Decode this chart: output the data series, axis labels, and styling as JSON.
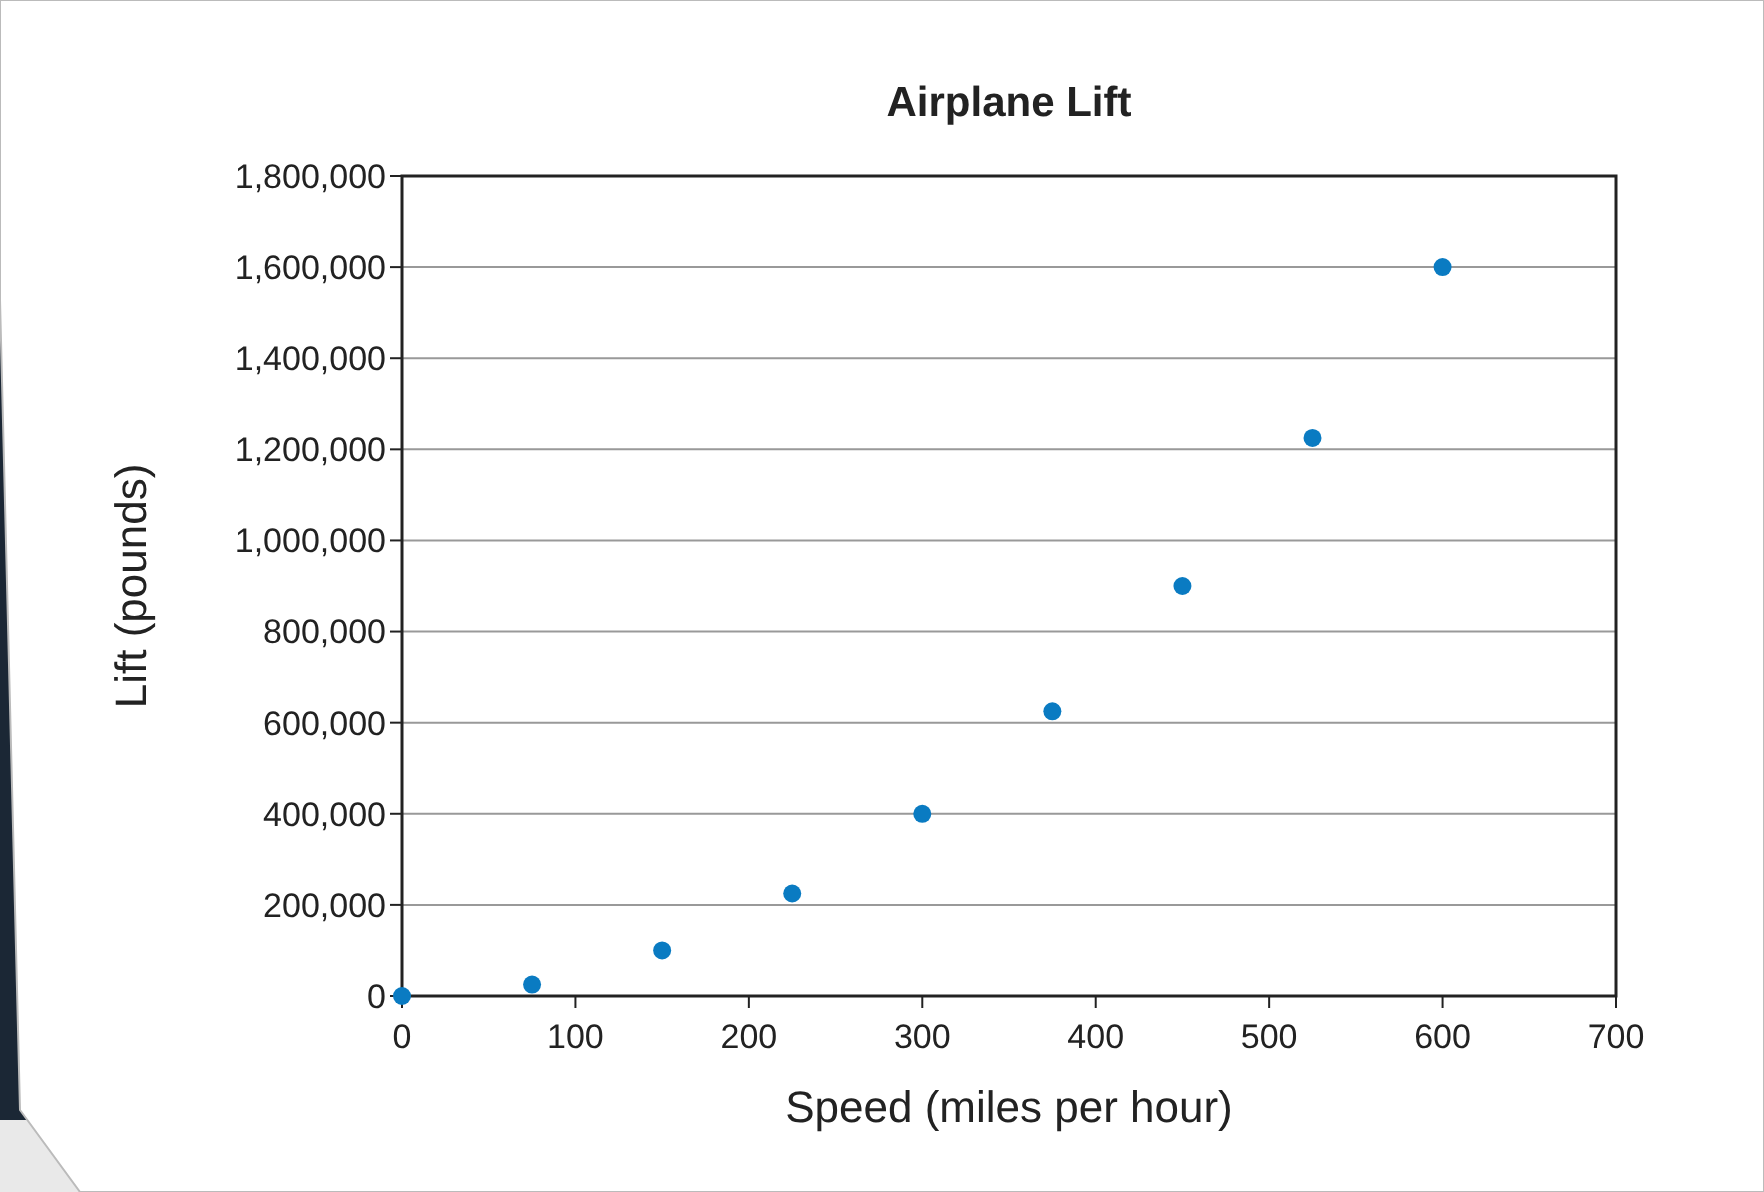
{
  "chart_data": {
    "type": "scatter",
    "title": "Airplane Lift",
    "xlabel": "Speed (miles per hour)",
    "ylabel": "Lift (pounds)",
    "x": [
      0,
      75,
      150,
      225,
      300,
      375,
      450,
      525,
      600
    ],
    "series": [
      {
        "color": "#0a7bc2",
        "values": [
          0,
          25000,
          100000,
          225000,
          400000,
          625000,
          900000,
          1225000,
          1600000
        ]
      }
    ],
    "xlim": [
      0,
      700
    ],
    "xticks": [
      0,
      100,
      200,
      300,
      400,
      500,
      600,
      700
    ],
    "ylim": [
      0,
      1800000
    ],
    "yticks": [
      {
        "value": 0,
        "label": "0"
      },
      {
        "value": 200000,
        "label": "200,000"
      },
      {
        "value": 400000,
        "label": "400,000"
      },
      {
        "value": 600000,
        "label": "600,000"
      },
      {
        "value": 800000,
        "label": "800,000"
      },
      {
        "value": 1000000,
        "label": "1,000,000"
      },
      {
        "value": 1200000,
        "label": "1,200,000"
      },
      {
        "value": 1400000,
        "label": "1,400,000"
      },
      {
        "value": 1600000,
        "label": "1,600,000"
      },
      {
        "value": 1800000,
        "label": "1,800,000"
      }
    ],
    "grid": "y",
    "marker": "circle"
  }
}
